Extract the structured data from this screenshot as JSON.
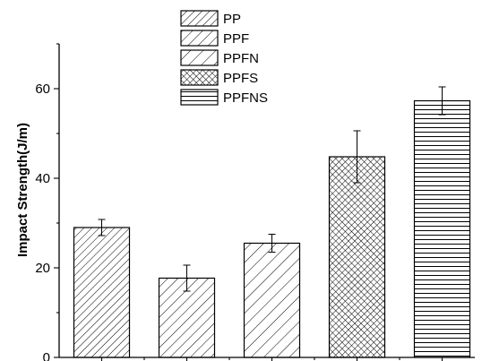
{
  "chart_data": {
    "type": "bar",
    "categories": [
      "PP",
      "PPF",
      "PPFN",
      "PPFS",
      "PPFNS"
    ],
    "values": [
      29.0,
      17.7,
      25.5,
      44.8,
      57.3
    ],
    "errors": [
      1.8,
      2.9,
      2.0,
      5.8,
      3.1
    ],
    "patterns": [
      "diagonal-dense",
      "diagonal",
      "diagonal-wide",
      "crosshatch",
      "horizontal"
    ],
    "title": "",
    "xlabel": "",
    "ylabel": "Impact Strength(J/m)",
    "ylim": [
      0,
      70
    ],
    "yticks": [
      0,
      20,
      40,
      60
    ],
    "legend": {
      "position": "top-center",
      "entries": [
        "PP",
        "PPF",
        "PPFN",
        "PPFS",
        "PPFNS"
      ]
    },
    "grid": false
  }
}
